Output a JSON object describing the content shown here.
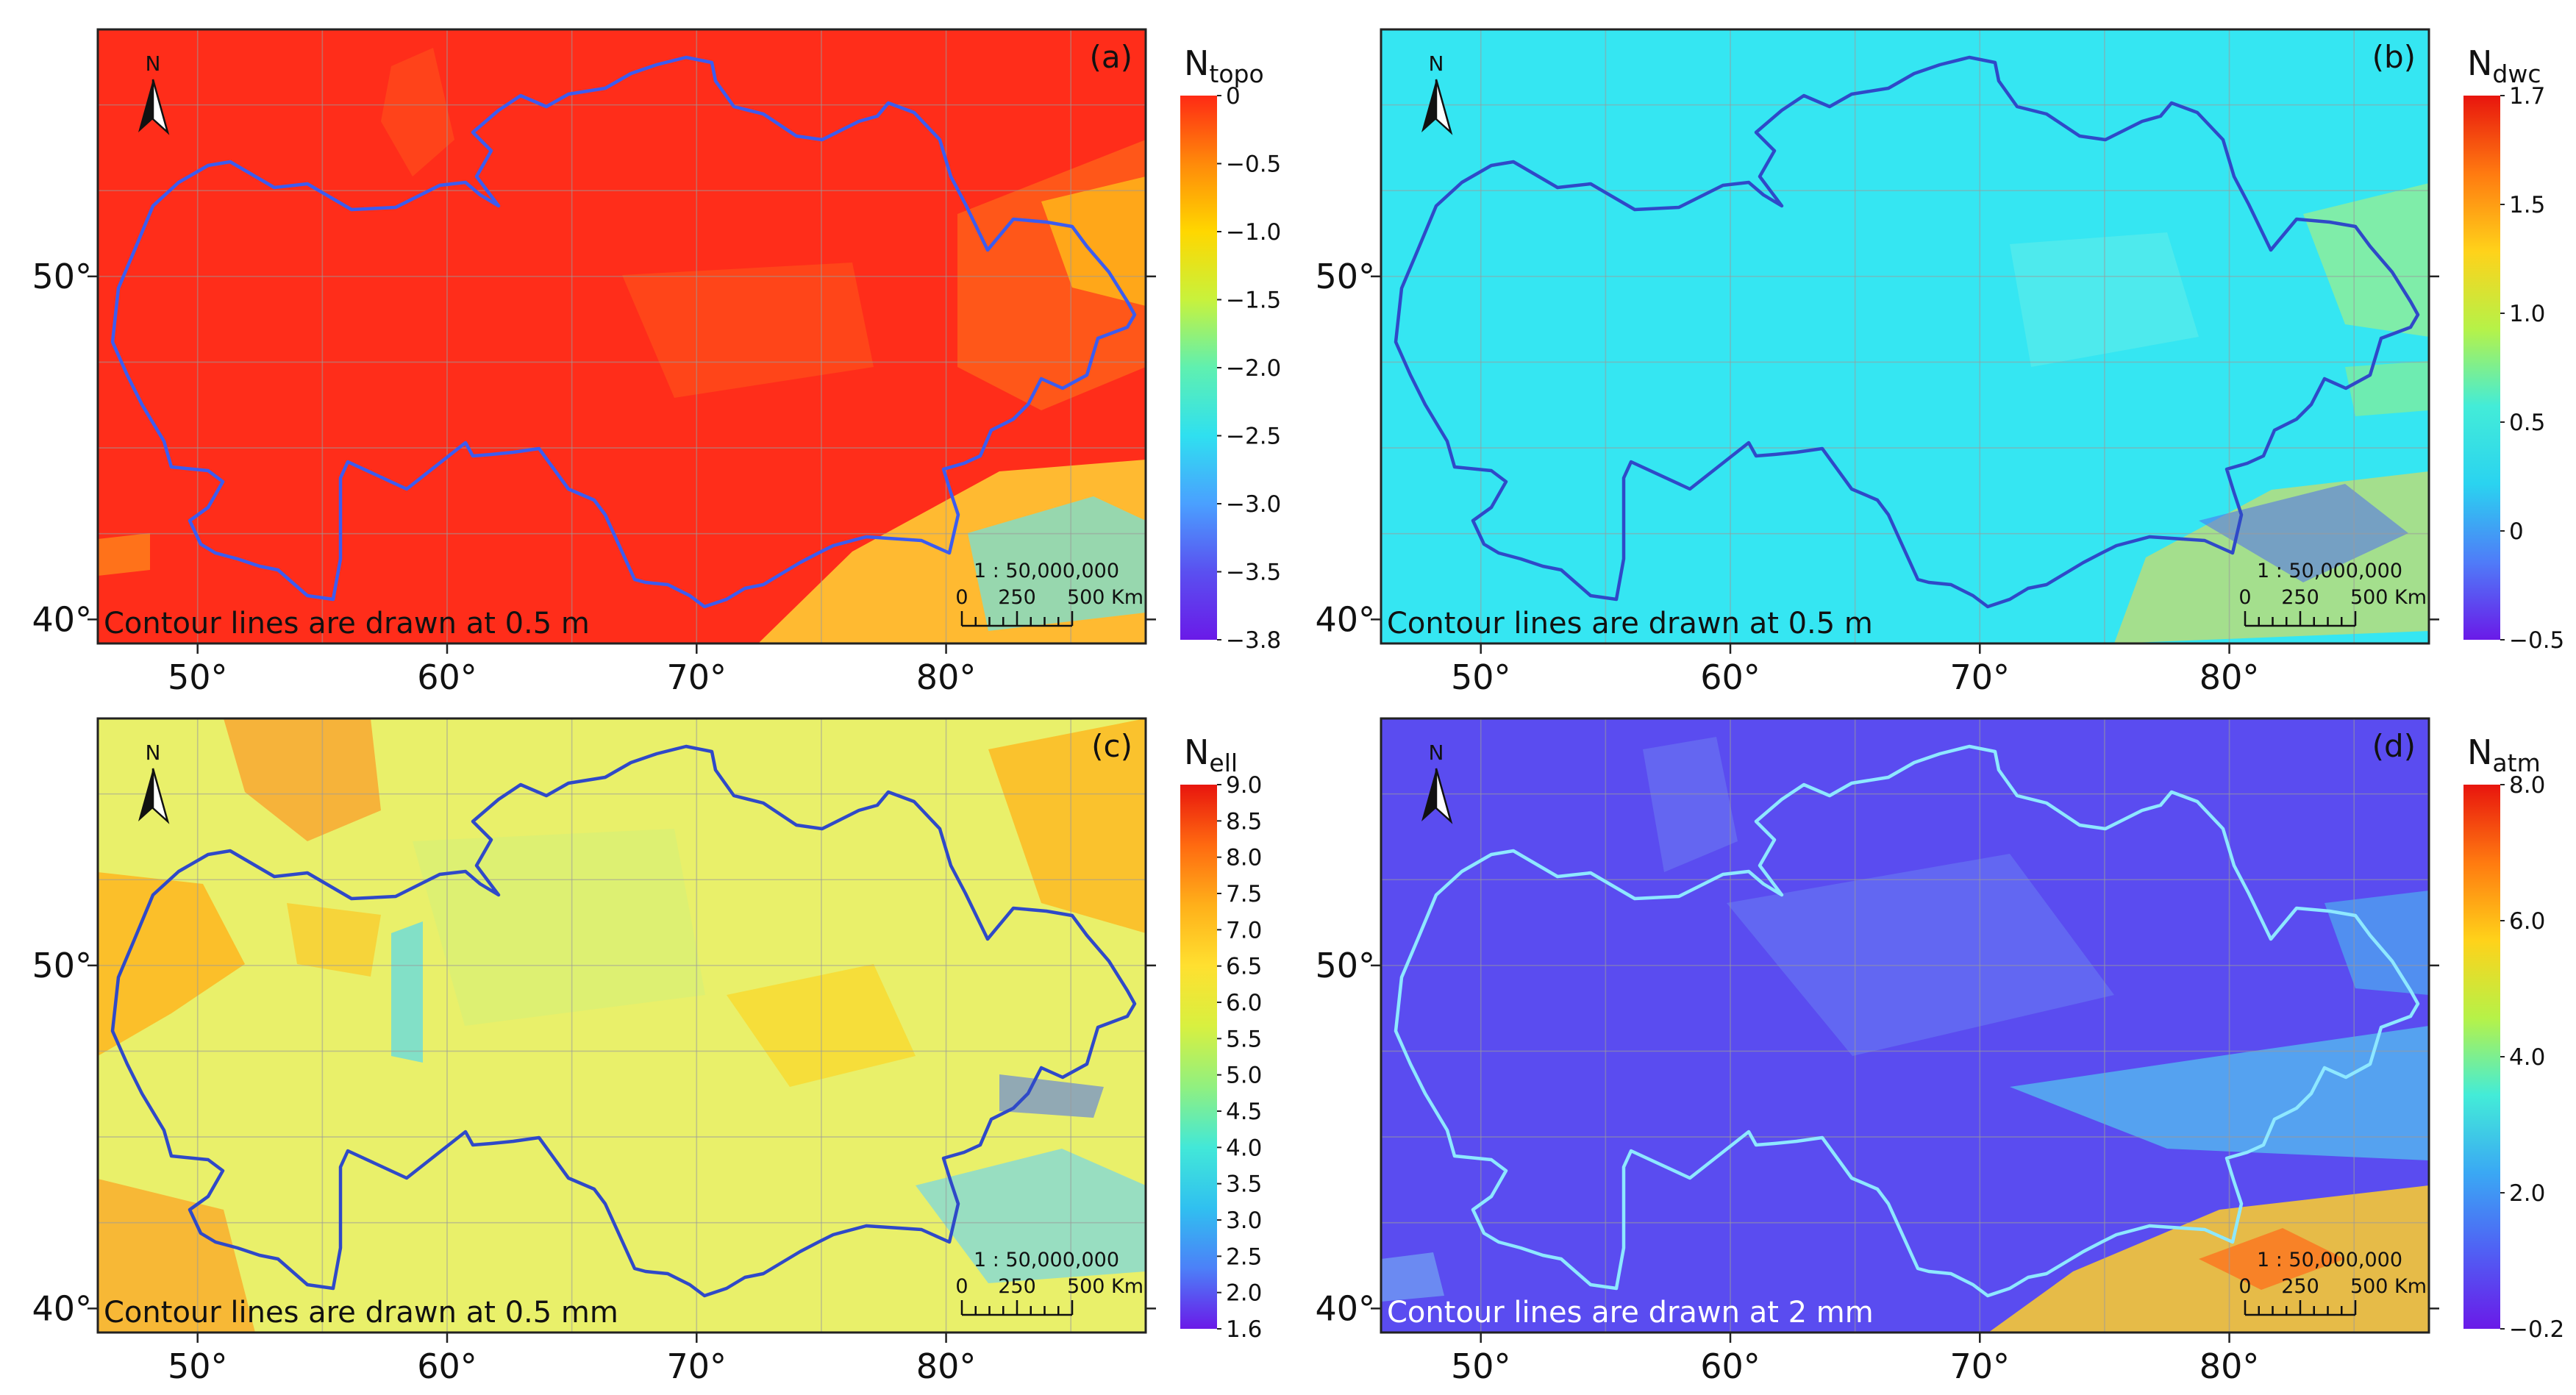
{
  "axes": {
    "lon_labels": [
      "50°",
      "60°",
      "70°",
      "80°"
    ],
    "lat_labels": [
      "50°",
      "40°"
    ]
  },
  "panels": [
    {
      "id": "a",
      "label": "(a)",
      "cb_title_main": "N",
      "cb_title_sub": "topo",
      "cb_ticks": [
        "0",
        "−0.5",
        "−1.0",
        "−1.5",
        "−2.0",
        "−2.5",
        "−3.0",
        "−3.5",
        "−3.8"
      ],
      "cb_colors": [
        "#ff2a14",
        "#ff8a0a",
        "#ffd700",
        "#c8f23c",
        "#5ff0b0",
        "#2fe0f0",
        "#4aa0ff",
        "#5a50f0",
        "#6a1ae8"
      ],
      "background": "#ff2d1a",
      "border_color": "#3b5cf0",
      "note": "Contour lines are drawn at 0.5 m",
      "note_color": "#111111",
      "scale_ratio": "1 : 50,000,000",
      "scale_ticks": [
        "0",
        "250",
        "500 Km"
      ],
      "north": "N"
    },
    {
      "id": "b",
      "label": "(b)",
      "cb_title_main": "N",
      "cb_title_sub": "dwc",
      "cb_ticks": [
        "1.7",
        "1.5",
        "1.0",
        "0.5",
        "0",
        "−0.5"
      ],
      "cb_colors": [
        "#e8150e",
        "#ff7a10",
        "#ffd21a",
        "#b6f248",
        "#43ecd8",
        "#2ad3f0",
        "#4f7cf8",
        "#6a1ae8"
      ],
      "background": "#35e6f2",
      "border_color": "#2f49c8",
      "note": "Contour lines are drawn at 0.5 m",
      "note_color": "#111111",
      "scale_ratio": "1 : 50,000,000",
      "scale_ticks": [
        "0",
        "250",
        "500 Km"
      ],
      "north": "N"
    },
    {
      "id": "c",
      "label": "(c)",
      "cb_title_main": "N",
      "cb_title_sub": "ell",
      "cb_ticks": [
        "9.0",
        "8.5",
        "8.0",
        "7.5",
        "7.0",
        "6.5",
        "6.0",
        "5.5",
        "5.0",
        "4.5",
        "4.0",
        "3.5",
        "3.0",
        "2.5",
        "2.0",
        "1.6"
      ],
      "cb_colors": [
        "#e8150e",
        "#ff6a10",
        "#ffb01a",
        "#ffe030",
        "#d8f040",
        "#90f080",
        "#42e8d8",
        "#30c0f0",
        "#4c80f8",
        "#6a1ae8"
      ],
      "background": "#e9f06a",
      "border_color": "#2f49c8",
      "note": "Contour lines are drawn at 0.5 mm",
      "note_color": "#111111",
      "scale_ratio": "1 : 50,000,000",
      "scale_ticks": [
        "0",
        "250",
        "500 Km"
      ],
      "north": "N"
    },
    {
      "id": "d",
      "label": "(d)",
      "cb_title_main": "N",
      "cb_title_sub": "atm",
      "cb_ticks": [
        "8.0",
        "6.0",
        "4.0",
        "2.0",
        "−0.2"
      ],
      "cb_colors": [
        "#e8150e",
        "#ff7a10",
        "#ffd21a",
        "#b6f248",
        "#43ecd8",
        "#3aa8f4",
        "#5060f4",
        "#6a1ae8"
      ],
      "background": "#5a4cf0",
      "border_color": "#8ee8ff",
      "note": "Contour lines are drawn at 2 mm",
      "note_color": "#ffffff",
      "scale_ratio": "1 : 50,000,000",
      "scale_ticks": [
        "0",
        "250",
        "500 Km"
      ],
      "north": "N"
    }
  ]
}
